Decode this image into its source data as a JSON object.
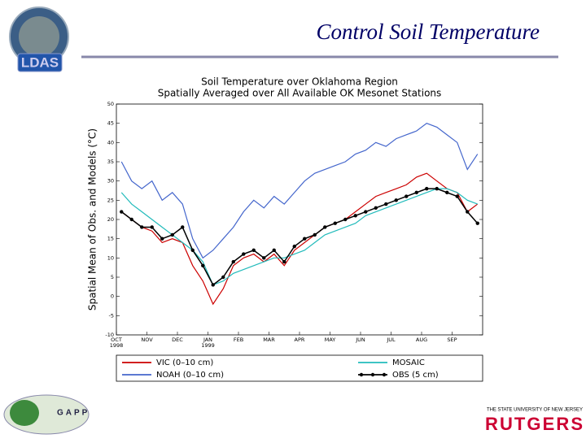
{
  "slide_title": "Control Soil Temperature",
  "logos": {
    "ldas": "LDAS",
    "gapp": "GAPP",
    "rutgers": "RUTGERS",
    "rutgers_sub": "THE STATE UNIVERSITY OF NEW JERSEY"
  },
  "chart_data": {
    "type": "line",
    "title": "Soil Temperature over Oklahoma Region",
    "subtitle": "Spatially Averaged over All Available OK Mesonet Stations",
    "y_label": "Spatial Mean of Obs. and Models (°C)",
    "categories": [
      "OCT 1998",
      null,
      null,
      "NOV",
      null,
      null,
      "DEC",
      null,
      null,
      "JAN 1999",
      null,
      null,
      "FEB",
      null,
      null,
      "MAR",
      null,
      null,
      "APR",
      null,
      null,
      "MAY",
      null,
      null,
      "JUN",
      null,
      null,
      "JUL",
      null,
      null,
      "AUG",
      null,
      null,
      "SEP",
      null,
      null
    ],
    "series": [
      {
        "name": "VIC (0–10 cm)",
        "color": "#cc0000",
        "values": [
          22,
          20,
          18,
          17,
          14,
          15,
          14,
          8,
          4,
          -2,
          2,
          8,
          10,
          11,
          9,
          11,
          8,
          12,
          14,
          16,
          18,
          19,
          20,
          22,
          24,
          26,
          27,
          28,
          29,
          31,
          32,
          30,
          28,
          27,
          22,
          24
        ]
      },
      {
        "name": "NOAH (0–10 cm)",
        "color": "#4466cc",
        "values": [
          35,
          30,
          28,
          30,
          25,
          27,
          24,
          15,
          10,
          12,
          15,
          18,
          22,
          25,
          23,
          26,
          24,
          27,
          30,
          32,
          33,
          34,
          35,
          37,
          38,
          40,
          39,
          41,
          42,
          43,
          45,
          44,
          42,
          40,
          33,
          37
        ]
      },
      {
        "name": "MOSAIC",
        "color": "#22bbbb",
        "values": [
          27,
          24,
          22,
          20,
          18,
          16,
          14,
          12,
          9,
          3,
          4,
          6,
          7,
          8,
          9,
          10,
          10,
          11,
          12,
          14,
          16,
          17,
          18,
          19,
          21,
          22,
          23,
          24,
          25,
          26,
          27,
          28,
          28,
          27,
          25,
          24
        ]
      },
      {
        "name": "OBS (5 cm)",
        "color": "#000000",
        "markers": true,
        "values": [
          22,
          20,
          18,
          18,
          15,
          16,
          18,
          12,
          8,
          3,
          5,
          9,
          11,
          12,
          10,
          12,
          9,
          13,
          15,
          16,
          18,
          19,
          20,
          21,
          22,
          23,
          24,
          25,
          26,
          27,
          28,
          28,
          27,
          26,
          22,
          19
        ]
      }
    ],
    "ylim": [
      -10,
      50
    ],
    "yticks": [
      -10,
      -5,
      0,
      5,
      10,
      15,
      20,
      25,
      30,
      35,
      40,
      45,
      50
    ]
  }
}
